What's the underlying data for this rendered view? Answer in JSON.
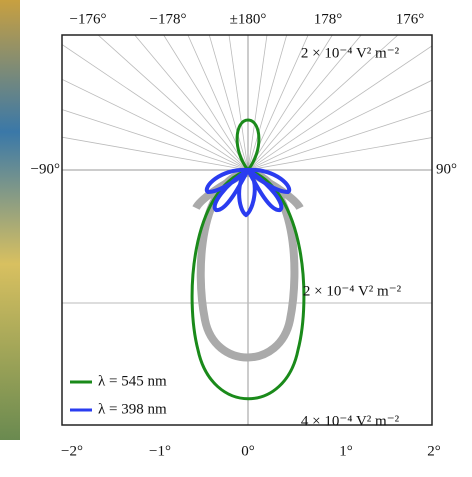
{
  "top_ticks": [
    "−176°",
    "−178°",
    "±180°",
    "178°",
    "176°"
  ],
  "side_ticks": [
    "−90°",
    "90°"
  ],
  "bottom_ticks": [
    "−2°",
    "−1°",
    "0°",
    "1°",
    "2°"
  ],
  "annotations": [
    "2 × 10⁻⁴ V² m⁻²",
    "2 × 10⁻⁴ V² m⁻²",
    "4 × 10⁻⁴ V² m⁻²"
  ],
  "legend": [
    {
      "label": "λ = 545 nm",
      "color": "#1a8a1a"
    },
    {
      "label": "λ = 398 nm",
      "color": "#2a3cf0"
    }
  ]
}
